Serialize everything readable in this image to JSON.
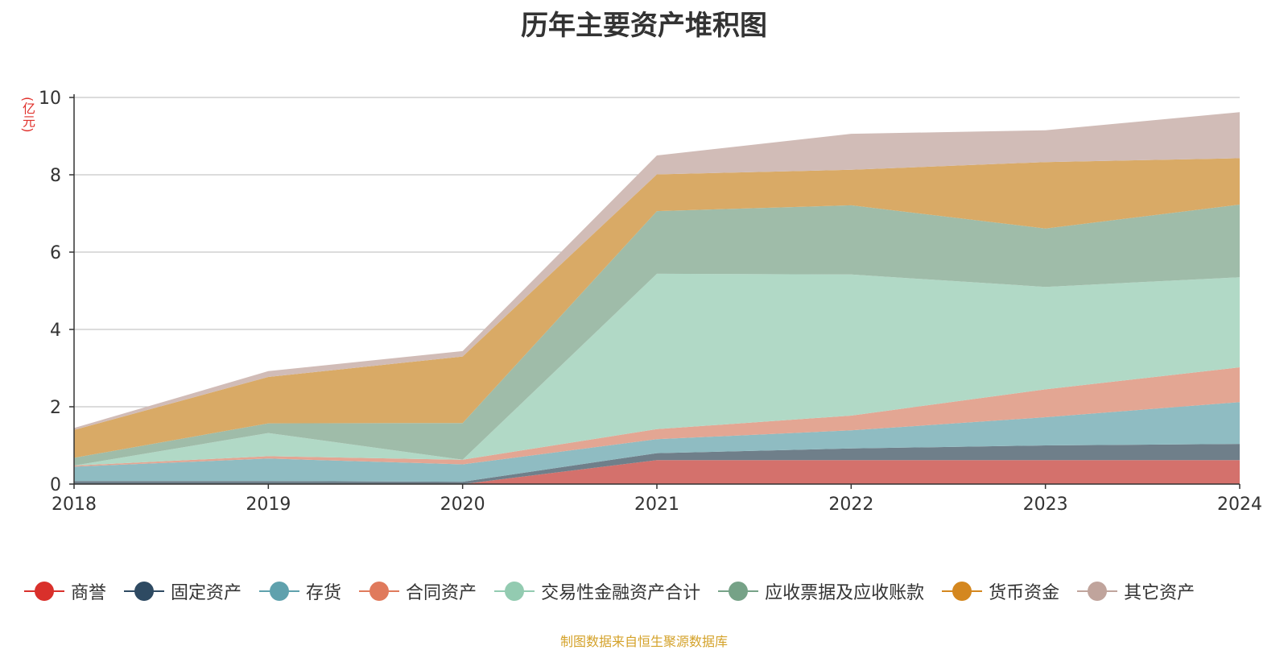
{
  "chart_data": {
    "type": "area",
    "stacked": true,
    "title": "历年主要资产堆积图",
    "ylabel": "(亿元)",
    "xlabel": "",
    "x": [
      "2018",
      "2019",
      "2020",
      "2021",
      "2022",
      "2023",
      "2024"
    ],
    "ylim": [
      0,
      10
    ],
    "yticks": [
      "0",
      "2",
      "4",
      "6",
      "8",
      "10"
    ],
    "grid": true,
    "legend_position": "bottom",
    "series": [
      {
        "name": "商誉",
        "color": "#d9302b",
        "fill": "#d4716c",
        "values": [
          0.0,
          0.0,
          0.0,
          0.62,
          0.62,
          0.62,
          0.62
        ]
      },
      {
        "name": "固定资产",
        "color": "#2e4a62",
        "fill": "#6f7f8a",
        "values": [
          0.08,
          0.08,
          0.06,
          0.18,
          0.3,
          0.38,
          0.42
        ]
      },
      {
        "name": "存货",
        "color": "#5fa1ad",
        "fill": "#8fbcc2",
        "values": [
          0.37,
          0.58,
          0.45,
          0.36,
          0.47,
          0.73,
          1.08
        ]
      },
      {
        "name": "合同资产",
        "color": "#e07a5c",
        "fill": "#e3a693",
        "values": [
          0.03,
          0.06,
          0.12,
          0.26,
          0.38,
          0.72,
          0.9
        ]
      },
      {
        "name": "交易性金融资产合计",
        "color": "#93cbb1",
        "fill": "#b1d9c6",
        "values": [
          0.0,
          0.6,
          0.0,
          4.02,
          3.65,
          2.65,
          2.33
        ]
      },
      {
        "name": "应收票据及应收账款",
        "color": "#76a287",
        "fill": "#9fbca9",
        "values": [
          0.2,
          0.25,
          0.95,
          1.62,
          1.79,
          1.51,
          1.88
        ]
      },
      {
        "name": "货币资金",
        "color": "#d4871f",
        "fill": "#d9aa66",
        "values": [
          0.72,
          1.2,
          1.72,
          0.95,
          0.92,
          1.72,
          1.2
        ]
      },
      {
        "name": "其它资产",
        "color": "#c0a49c",
        "fill": "#d1bcb7",
        "values": [
          0.05,
          0.15,
          0.14,
          0.49,
          0.93,
          0.82,
          1.19
        ]
      }
    ]
  },
  "footer": {
    "source": "制图数据来自恒生聚源数据库"
  }
}
